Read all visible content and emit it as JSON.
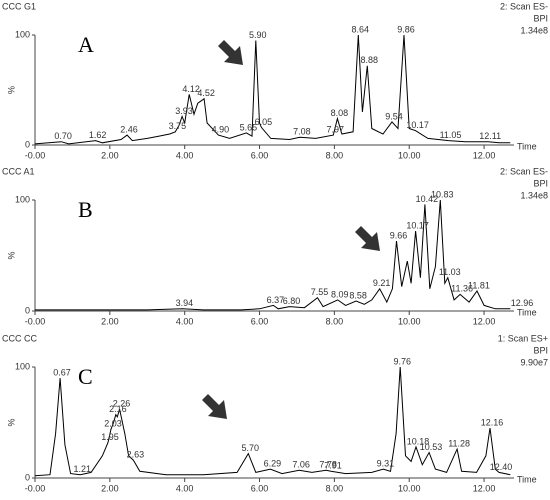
{
  "chart_data": [
    {
      "type": "line",
      "title": "CCC G1",
      "header": [
        "2: Scan ES-",
        "BPI",
        "1.34e8"
      ],
      "panel_label": "A",
      "y_label": "%",
      "x_label": "Time",
      "color": "#000000",
      "x": [
        0,
        0.7,
        0.9,
        1.62,
        1.8,
        2.3,
        2.46,
        2.6,
        3.0,
        3.3,
        3.6,
        3.75,
        3.85,
        3.93,
        4.0,
        4.12,
        4.25,
        4.35,
        4.52,
        4.6,
        4.9,
        5.2,
        5.65,
        5.8,
        5.9,
        6.0,
        6.05,
        6.3,
        6.8,
        7.08,
        7.5,
        7.97,
        8.08,
        8.2,
        8.5,
        8.64,
        8.75,
        8.88,
        9.0,
        9.3,
        9.54,
        9.7,
        9.86,
        10.0,
        10.17,
        10.5,
        11.05,
        11.5,
        12.11,
        12.4,
        12.7
      ],
      "values": [
        1,
        3,
        1,
        4,
        2,
        5,
        9,
        4,
        6,
        8,
        10,
        12,
        18,
        26,
        20,
        46,
        28,
        38,
        42,
        20,
        9,
        6,
        11,
        8,
        95,
        20,
        16,
        6,
        5,
        7,
        6,
        9,
        24,
        10,
        12,
        100,
        30,
        72,
        15,
        10,
        21,
        15,
        100,
        15,
        13,
        6,
        4,
        3,
        3,
        2,
        2
      ],
      "peaks": [
        {
          "x": 0.7,
          "y": 3,
          "label": "0.70"
        },
        {
          "x": 1.62,
          "y": 4,
          "label": "1.62"
        },
        {
          "x": 2.46,
          "y": 9,
          "label": "2.46"
        },
        {
          "x": 3.75,
          "y": 12,
          "label": "3.75"
        },
        {
          "x": 3.93,
          "y": 26,
          "label": "3.93"
        },
        {
          "x": 4.12,
          "y": 46,
          "label": "4.12"
        },
        {
          "x": 4.52,
          "y": 42,
          "label": "4.52"
        },
        {
          "x": 4.9,
          "y": 9,
          "label": "4.90"
        },
        {
          "x": 5.65,
          "y": 11,
          "label": "5.65"
        },
        {
          "x": 5.9,
          "y": 95,
          "label": "5.90"
        },
        {
          "x": 6.05,
          "y": 16,
          "label": "6.05"
        },
        {
          "x": 7.08,
          "y": 7,
          "label": "7.08"
        },
        {
          "x": 7.97,
          "y": 9,
          "label": "7.97"
        },
        {
          "x": 8.08,
          "y": 24,
          "label": "8.08"
        },
        {
          "x": 8.64,
          "y": 100,
          "label": "8.64"
        },
        {
          "x": 8.88,
          "y": 72,
          "label": "8.88"
        },
        {
          "x": 9.54,
          "y": 21,
          "label": "9.54"
        },
        {
          "x": 9.86,
          "y": 100,
          "label": "9.86"
        },
        {
          "x": 10.17,
          "y": 13,
          "label": "10.17"
        },
        {
          "x": 11.05,
          "y": 4,
          "label": "11.05"
        },
        {
          "x": 12.11,
          "y": 3,
          "label": "12.11"
        }
      ],
      "xlim": [
        0,
        12.8
      ],
      "ylim": [
        0,
        100
      ],
      "xticks": [
        {
          "value": 0,
          "label": "-0.00"
        },
        {
          "value": 2,
          "label": "2.00"
        },
        {
          "value": 4,
          "label": "4.00"
        },
        {
          "value": 6,
          "label": "6.00"
        },
        {
          "value": 8,
          "label": "8.00"
        },
        {
          "value": 10,
          "label": "10.00"
        },
        {
          "value": 12,
          "label": "12.00"
        }
      ],
      "yticks": [
        0,
        100
      ]
    },
    {
      "type": "line",
      "title": "CCC A1",
      "header": [
        "2: Scan ES-",
        "BPI",
        "1.34e8"
      ],
      "panel_label": "B",
      "y_label": "%",
      "x_label": "Time",
      "color": "#000000",
      "x": [
        0,
        1.0,
        2.0,
        3.0,
        3.94,
        4.5,
        5.5,
        6.0,
        6.37,
        6.5,
        6.8,
        7.2,
        7.55,
        7.7,
        8.09,
        8.3,
        8.58,
        8.8,
        9.0,
        9.21,
        9.4,
        9.55,
        9.66,
        9.8,
        9.95,
        10.05,
        10.17,
        10.3,
        10.42,
        10.55,
        10.7,
        10.83,
        10.95,
        11.03,
        11.2,
        11.36,
        11.6,
        11.81,
        12.0,
        12.3,
        12.7
      ],
      "values": [
        1,
        1,
        1,
        1,
        2,
        1,
        1,
        2,
        5,
        2,
        4,
        3,
        12,
        4,
        10,
        5,
        9,
        6,
        10,
        20,
        8,
        20,
        63,
        22,
        45,
        25,
        72,
        30,
        96,
        20,
        40,
        100,
        25,
        30,
        10,
        15,
        8,
        18,
        5,
        2,
        2
      ],
      "peaks": [
        {
          "x": 3.94,
          "y": 2,
          "label": "3.94"
        },
        {
          "x": 6.37,
          "y": 5,
          "label": "6.37"
        },
        {
          "x": 6.8,
          "y": 4,
          "label": "6.80"
        },
        {
          "x": 7.55,
          "y": 12,
          "label": "7.55"
        },
        {
          "x": 8.09,
          "y": 10,
          "label": "8.09"
        },
        {
          "x": 8.58,
          "y": 9,
          "label": "8.58"
        },
        {
          "x": 9.21,
          "y": 20,
          "label": "9.21"
        },
        {
          "x": 9.66,
          "y": 63,
          "label": "9.66"
        },
        {
          "x": 10.17,
          "y": 72,
          "label": "10.17"
        },
        {
          "x": 10.42,
          "y": 96,
          "label": "10.42"
        },
        {
          "x": 10.83,
          "y": 100,
          "label": "10.83"
        },
        {
          "x": 11.03,
          "y": 30,
          "label": "11.03"
        },
        {
          "x": 11.36,
          "y": 15,
          "label": "11.36"
        },
        {
          "x": 11.81,
          "y": 18,
          "label": "11.81"
        },
        {
          "x": 12.96,
          "y": 2,
          "label": "12.96"
        }
      ],
      "xlim": [
        0,
        12.8
      ],
      "ylim": [
        0,
        100
      ],
      "xticks": [
        {
          "value": 0,
          "label": "-0.00"
        },
        {
          "value": 2,
          "label": "2.00"
        },
        {
          "value": 4,
          "label": "4.00"
        },
        {
          "value": 6,
          "label": "6.00"
        },
        {
          "value": 8,
          "label": "8.00"
        },
        {
          "value": 10,
          "label": "10.00"
        },
        {
          "value": 12,
          "label": "12.00"
        }
      ],
      "yticks": [
        0,
        100
      ]
    },
    {
      "type": "line",
      "title": "CCC CC",
      "header": [
        "1: Scan ES+",
        "BPI",
        "9.90e7"
      ],
      "panel_label": "C",
      "y_label": "%",
      "x_label": "Time",
      "color": "#000000",
      "x": [
        0,
        0.4,
        0.55,
        0.67,
        0.8,
        0.95,
        1.21,
        1.5,
        1.8,
        1.95,
        2.03,
        2.1,
        2.16,
        2.2,
        2.26,
        2.4,
        2.5,
        2.63,
        2.8,
        3.5,
        4.5,
        5.4,
        5.7,
        5.9,
        6.29,
        6.6,
        7.06,
        7.4,
        7.78,
        7.91,
        8.3,
        9.0,
        9.31,
        9.5,
        9.65,
        9.76,
        9.9,
        10.05,
        10.18,
        10.35,
        10.53,
        10.7,
        11.0,
        11.28,
        11.4,
        11.8,
        12.05,
        12.16,
        12.3,
        12.4,
        12.7
      ],
      "values": [
        2,
        3,
        40,
        90,
        30,
        4,
        3,
        5,
        20,
        32,
        44,
        50,
        57,
        55,
        62,
        40,
        20,
        16,
        6,
        3,
        3,
        5,
        22,
        5,
        8,
        4,
        7,
        5,
        7,
        6,
        4,
        5,
        8,
        6,
        40,
        100,
        20,
        15,
        28,
        12,
        23,
        8,
        5,
        26,
        6,
        5,
        20,
        45,
        8,
        5,
        3
      ],
      "peaks": [
        {
          "x": 0.67,
          "y": 90,
          "label": "0.67"
        },
        {
          "x": 1.21,
          "y": 3,
          "label": "1.21"
        },
        {
          "x": 1.95,
          "y": 32,
          "label": "1.95"
        },
        {
          "x": 2.03,
          "y": 44,
          "label": "2.03"
        },
        {
          "x": 2.16,
          "y": 57,
          "label": "2.16"
        },
        {
          "x": 2.26,
          "y": 62,
          "label": "2.26"
        },
        {
          "x": 2.63,
          "y": 16,
          "label": "2.63"
        },
        {
          "x": 5.7,
          "y": 22,
          "label": "5.70"
        },
        {
          "x": 6.29,
          "y": 8,
          "label": "6.29"
        },
        {
          "x": 7.06,
          "y": 7,
          "label": "7.06"
        },
        {
          "x": 7.78,
          "y": 7,
          "label": "7.78"
        },
        {
          "x": 7.91,
          "y": 6,
          "label": "7.91"
        },
        {
          "x": 9.31,
          "y": 8,
          "label": "9.31"
        },
        {
          "x": 9.76,
          "y": 100,
          "label": "9.76"
        },
        {
          "x": 10.18,
          "y": 28,
          "label": "10.18"
        },
        {
          "x": 10.53,
          "y": 23,
          "label": "10.53"
        },
        {
          "x": 11.28,
          "y": 26,
          "label": "11.28"
        },
        {
          "x": 12.16,
          "y": 45,
          "label": "12.16"
        },
        {
          "x": 12.4,
          "y": 5,
          "label": "12.40"
        }
      ],
      "xlim": [
        0,
        12.8
      ],
      "ylim": [
        0,
        100
      ],
      "xticks": [
        {
          "value": 0,
          "label": "-0.00"
        },
        {
          "value": 2,
          "label": "2.00"
        },
        {
          "value": 4,
          "label": "4.00"
        },
        {
          "value": 6,
          "label": "6.00"
        },
        {
          "value": 8,
          "label": "8.00"
        },
        {
          "value": 10,
          "label": "10.00"
        },
        {
          "value": 12,
          "label": "12.00"
        }
      ],
      "yticks": [
        0,
        100
      ]
    }
  ]
}
